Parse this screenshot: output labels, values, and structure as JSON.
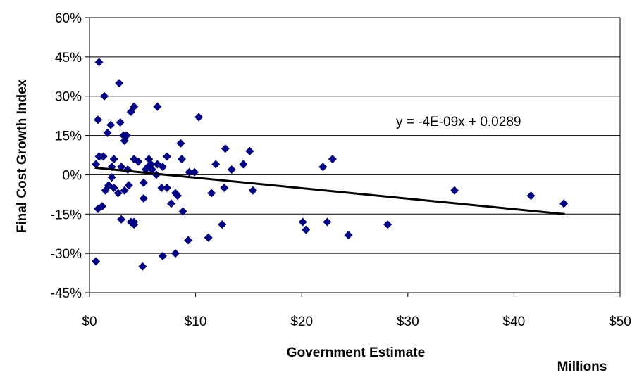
{
  "chart_data": {
    "type": "scatter",
    "title": "",
    "xlabel": "Government Estimate",
    "ylabel": "Final Cost Growth Index",
    "x_unit_label": "Millions",
    "xlim": [
      0,
      50
    ],
    "ylim": [
      -0.45,
      0.6
    ],
    "x_ticks": [
      0,
      10,
      20,
      30,
      40,
      50
    ],
    "x_tick_labels": [
      "$0",
      "$10",
      "$20",
      "$30",
      "$40",
      "$50"
    ],
    "y_ticks": [
      -0.45,
      -0.3,
      -0.15,
      0,
      0.15,
      0.3,
      0.45,
      0.6
    ],
    "y_tick_labels": [
      "-45%",
      "-30%",
      "-15%",
      "0%",
      "15%",
      "30%",
      "45%",
      "60%"
    ],
    "grid": "horizontal",
    "marker": "diamond",
    "marker_color": "#000080",
    "trendline": {
      "equation_label": "y = -4E-09x + 0.0289",
      "slope_per_million": -0.004,
      "intercept": 0.0289,
      "x_range": [
        0.5,
        44.8
      ],
      "color": "#000000"
    },
    "series": [
      {
        "points": [
          [
            0.9,
            0.43
          ],
          [
            1.4,
            0.3
          ],
          [
            2.8,
            0.35
          ],
          [
            0.8,
            0.21
          ],
          [
            1.7,
            0.16
          ],
          [
            2.0,
            0.19
          ],
          [
            2.9,
            0.2
          ],
          [
            3.2,
            0.15
          ],
          [
            3.5,
            0.15
          ],
          [
            3.3,
            0.13
          ],
          [
            3.9,
            0.24
          ],
          [
            4.2,
            0.26
          ],
          [
            6.4,
            0.26
          ],
          [
            10.3,
            0.22
          ],
          [
            8.6,
            0.12
          ],
          [
            0.6,
            0.04
          ],
          [
            0.9,
            0.07
          ],
          [
            1.3,
            0.07
          ],
          [
            2.3,
            0.06
          ],
          [
            2.1,
            0.03
          ],
          [
            3.0,
            0.03
          ],
          [
            3.6,
            0.02
          ],
          [
            4.2,
            0.06
          ],
          [
            4.6,
            0.05
          ],
          [
            5.6,
            0.06
          ],
          [
            5.5,
            0.03
          ],
          [
            5.8,
            0.04
          ],
          [
            6.4,
            0.04
          ],
          [
            6.9,
            0.03
          ],
          [
            7.3,
            0.07
          ],
          [
            8.7,
            0.06
          ],
          [
            9.4,
            0.01
          ],
          [
            9.9,
            0.01
          ],
          [
            5.3,
            0.02
          ],
          [
            5.9,
            0.02
          ],
          [
            6.3,
            0.0
          ],
          [
            2.1,
            -0.01
          ],
          [
            1.5,
            -0.06
          ],
          [
            1.8,
            -0.04
          ],
          [
            2.3,
            -0.05
          ],
          [
            2.7,
            -0.07
          ],
          [
            3.3,
            -0.06
          ],
          [
            3.7,
            -0.04
          ],
          [
            5.1,
            -0.03
          ],
          [
            6.8,
            -0.05
          ],
          [
            7.3,
            -0.05
          ],
          [
            8.1,
            -0.07
          ],
          [
            8.3,
            -0.08
          ],
          [
            7.7,
            -0.11
          ],
          [
            5.1,
            -0.09
          ],
          [
            8.8,
            -0.14
          ],
          [
            0.8,
            -0.13
          ],
          [
            1.2,
            -0.12
          ],
          [
            3.0,
            -0.17
          ],
          [
            3.9,
            -0.18
          ],
          [
            4.2,
            -0.18
          ],
          [
            4.2,
            -0.19
          ],
          [
            9.3,
            -0.25
          ],
          [
            8.1,
            -0.3
          ],
          [
            6.9,
            -0.31
          ],
          [
            5.0,
            -0.35
          ],
          [
            0.6,
            -0.33
          ],
          [
            11.2,
            -0.24
          ],
          [
            11.5,
            -0.07
          ],
          [
            11.9,
            0.04
          ],
          [
            12.5,
            -0.19
          ],
          [
            12.7,
            -0.05
          ],
          [
            12.8,
            0.1
          ],
          [
            13.4,
            0.02
          ],
          [
            14.5,
            0.04
          ],
          [
            15.1,
            0.09
          ],
          [
            15.4,
            -0.06
          ],
          [
            20.1,
            -0.18
          ],
          [
            20.4,
            -0.21
          ],
          [
            22.0,
            0.03
          ],
          [
            22.4,
            -0.18
          ],
          [
            22.9,
            0.06
          ],
          [
            24.4,
            -0.23
          ],
          [
            28.1,
            -0.19
          ],
          [
            34.4,
            -0.06
          ],
          [
            41.6,
            -0.08
          ],
          [
            44.7,
            -0.11
          ]
        ]
      }
    ]
  }
}
